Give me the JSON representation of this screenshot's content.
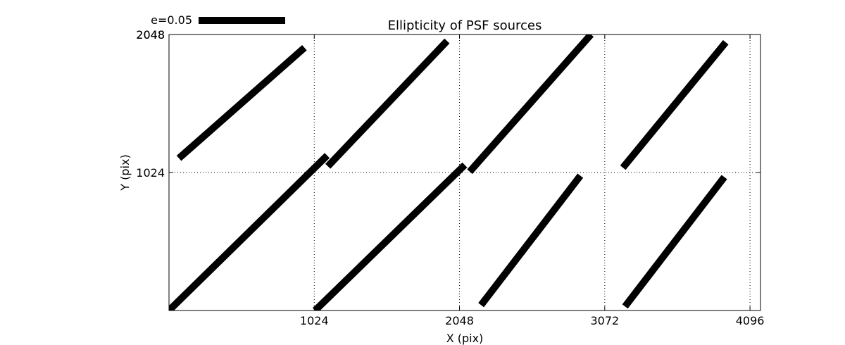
{
  "chart_data": {
    "type": "line",
    "title": "Ellipticity of PSF sources",
    "xlabel": "X (pix)",
    "ylabel": "Y (pix)",
    "xlim": [
      0,
      4170
    ],
    "ylim": [
      0,
      2048
    ],
    "xticks": [
      1024,
      2048,
      3072,
      4096
    ],
    "yticks": [
      1024,
      2048
    ],
    "y_tick_extra_label": "2048",
    "grid": true,
    "grid_style": "dotted",
    "line_color": "#000000",
    "legend": {
      "position": "top-left",
      "label": "e=0.05"
    },
    "segments": [
      {
        "x": [
          70,
          955
        ],
        "y": [
          1130,
          1950
        ]
      },
      {
        "x": [
          0,
          1115
        ],
        "y": [
          0,
          1150
        ]
      },
      {
        "x": [
          1120,
          1960
        ],
        "y": [
          1070,
          2000
        ]
      },
      {
        "x": [
          1030,
          2085
        ],
        "y": [
          0,
          1080
        ]
      },
      {
        "x": [
          2120,
          2975
        ],
        "y": [
          1030,
          2048
        ]
      },
      {
        "x": [
          2200,
          2900
        ],
        "y": [
          40,
          1000
        ]
      },
      {
        "x": [
          3200,
          3925
        ],
        "y": [
          1060,
          1990
        ]
      },
      {
        "x": [
          3215,
          3915
        ],
        "y": [
          30,
          990
        ]
      }
    ]
  }
}
